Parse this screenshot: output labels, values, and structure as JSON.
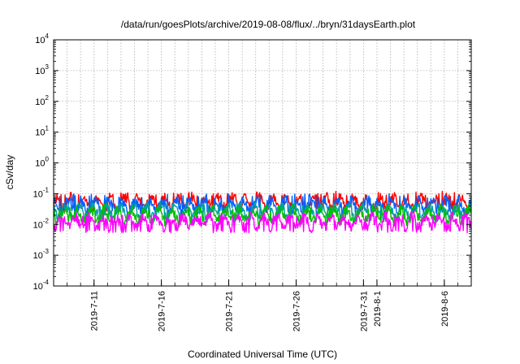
{
  "chart_data": {
    "type": "line",
    "title": "/data/run/goesPlots/archive/2019-08-08/flux/../bryn/31daysEarth.plot",
    "xlabel": "Coordinated Universal Time (UTC)",
    "ylabel": "cSv/day",
    "yscale": "log",
    "ylim": [
      0.0001,
      10000
    ],
    "xlim": [
      "2019-07-08",
      "2019-08-08"
    ],
    "grid": true,
    "y_ticks": [
      {
        "base": "10",
        "exp": "-4",
        "value": 0.0001
      },
      {
        "base": "10",
        "exp": "-3",
        "value": 0.001
      },
      {
        "base": "10",
        "exp": "-2",
        "value": 0.01
      },
      {
        "base": "10",
        "exp": "-1",
        "value": 0.1
      },
      {
        "base": "10",
        "exp": "0",
        "value": 1
      },
      {
        "base": "10",
        "exp": "1",
        "value": 10
      },
      {
        "base": "10",
        "exp": "2",
        "value": 100
      },
      {
        "base": "10",
        "exp": "3",
        "value": 1000
      },
      {
        "base": "10",
        "exp": "4",
        "value": 10000
      }
    ],
    "x_ticks": [
      "2019-7-11",
      "2019-7-16",
      "2019-7-21",
      "2019-7-26",
      "2019-7-31",
      "2019-8-1",
      "2019-8-6"
    ],
    "series": [
      {
        "color": "#ff0000",
        "typical": 0.05,
        "spikes_to": 0.12,
        "seed": 11
      },
      {
        "color": "#0060ff",
        "typical": 0.04,
        "spikes_to": 0.1,
        "seed": 23
      },
      {
        "color": "#00a0a0",
        "typical": 0.025,
        "spikes_to": 0.05,
        "seed": 37
      },
      {
        "color": "#00c000",
        "typical": 0.02,
        "spikes_to": 0.04,
        "seed": 41
      },
      {
        "color": "#ff00ff",
        "typical": 0.012,
        "spikes_to": 0.02,
        "seed": 53
      }
    ]
  }
}
